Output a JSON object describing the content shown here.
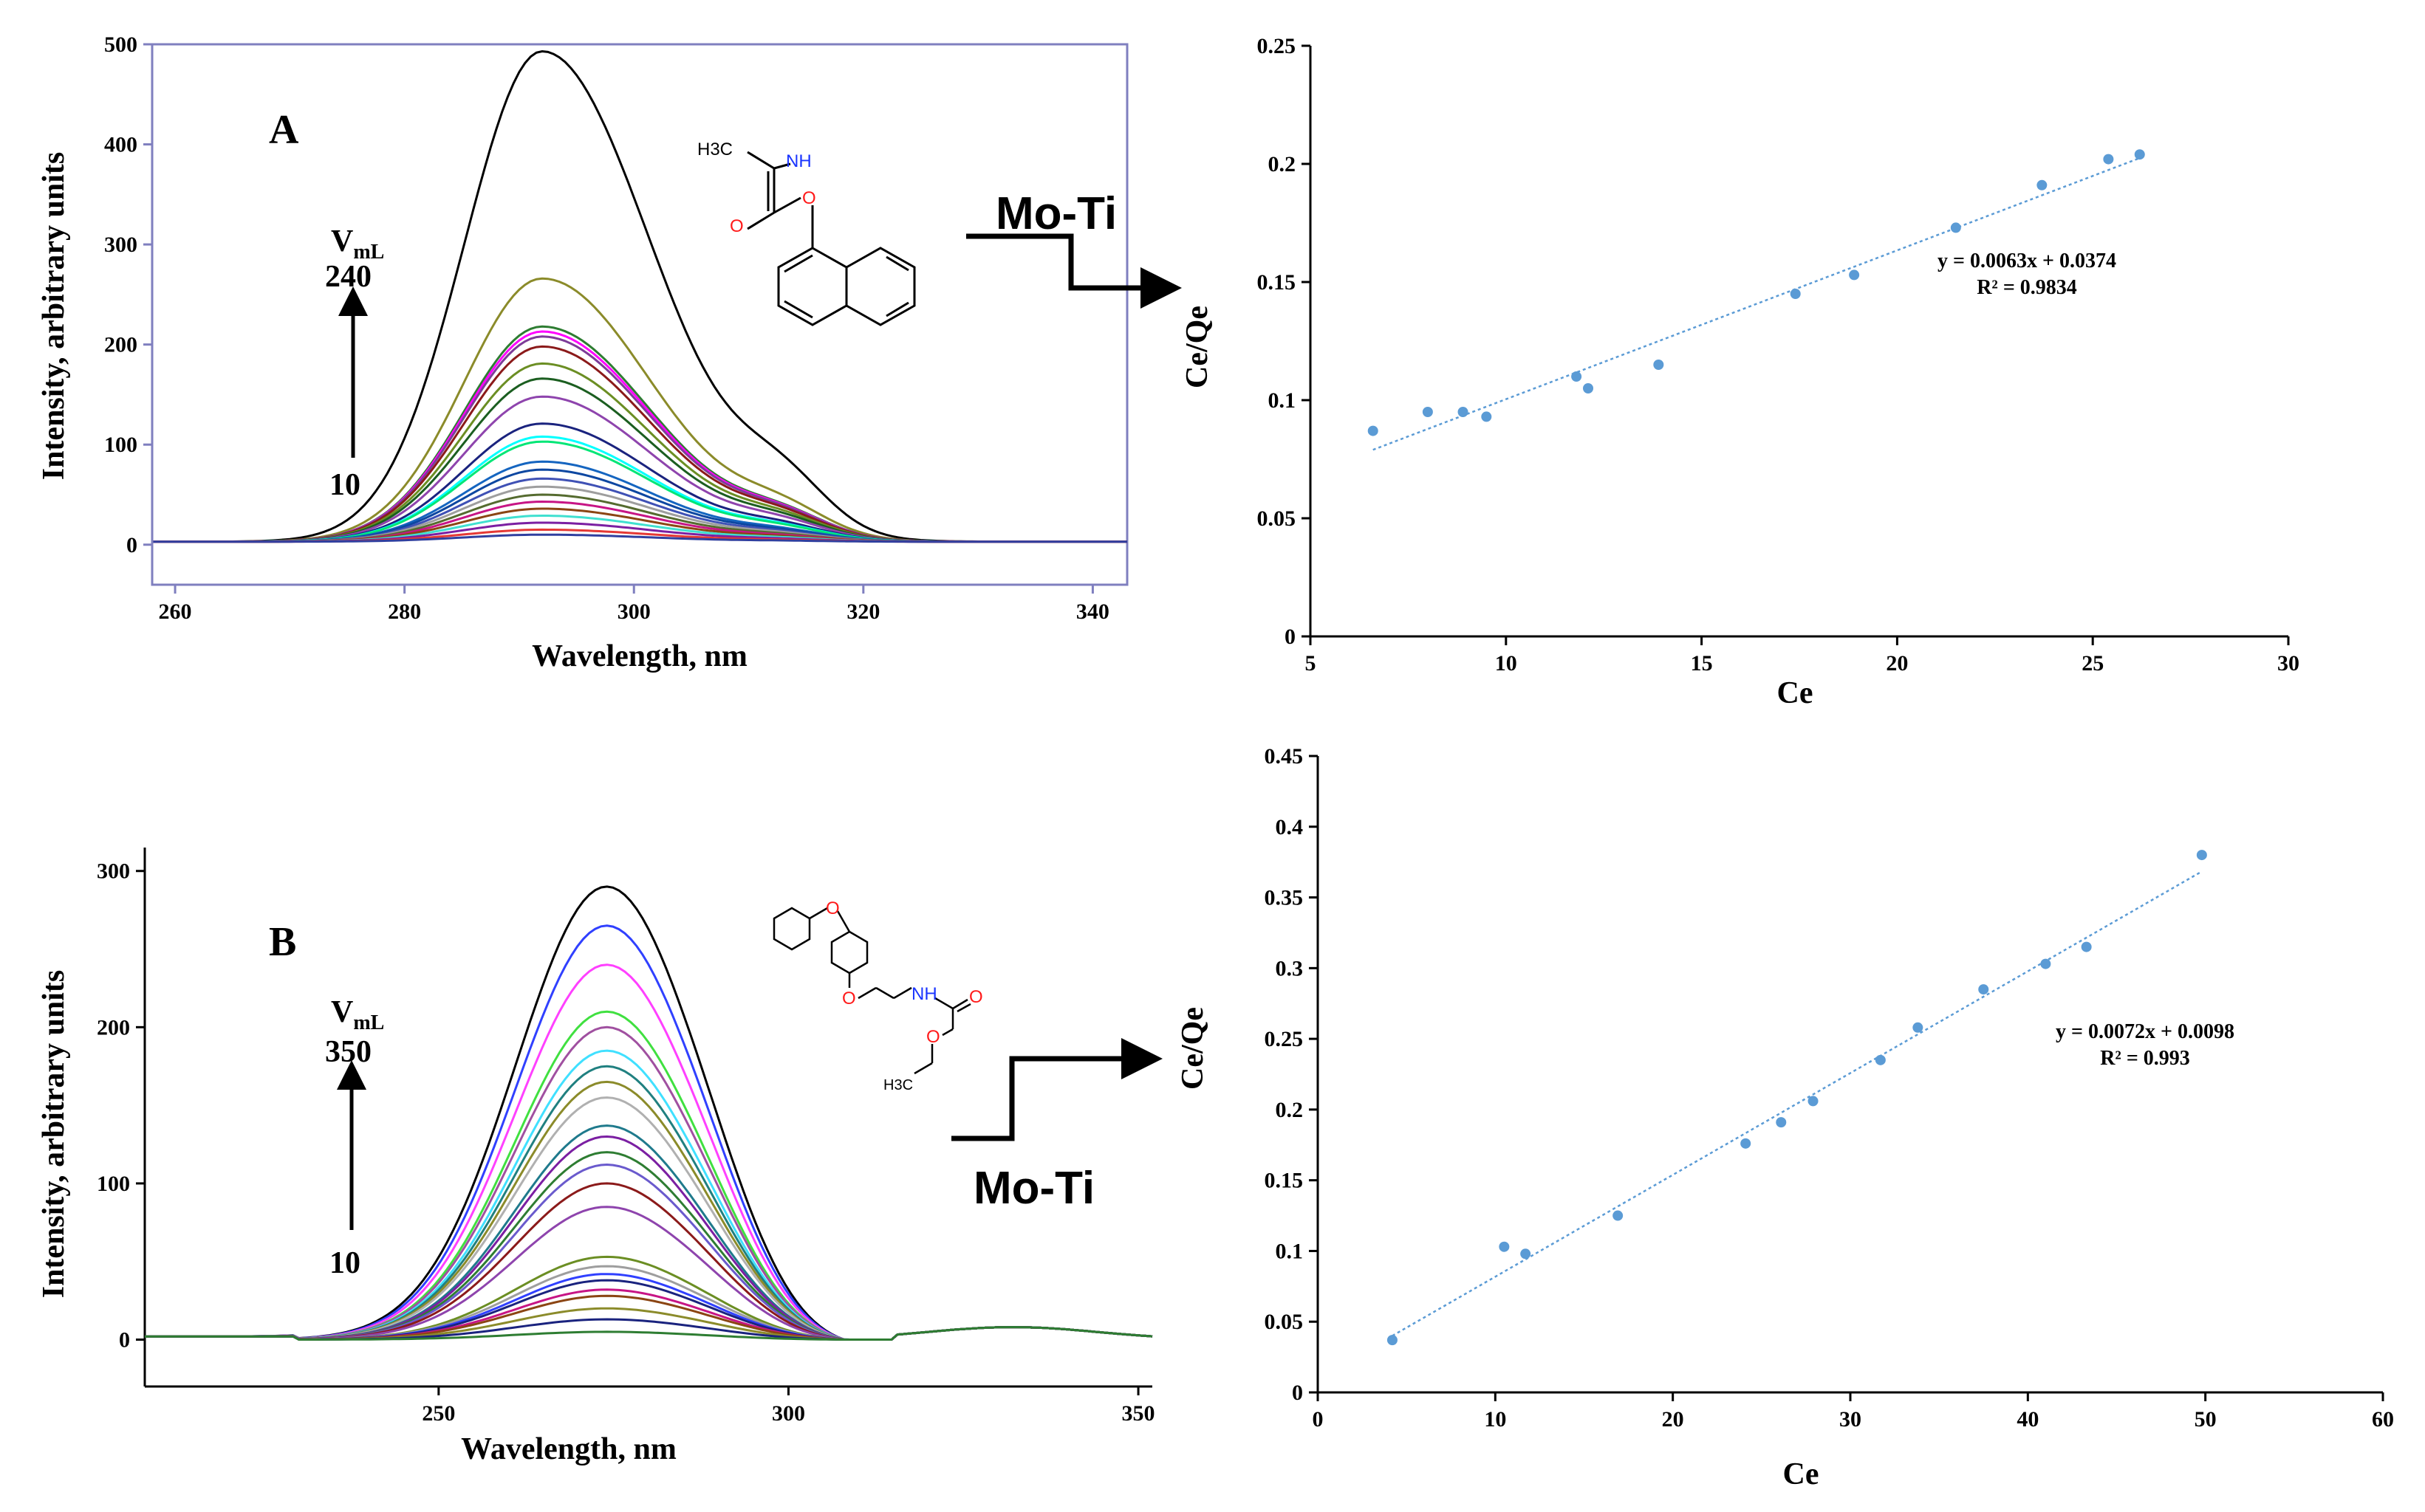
{
  "annotations": {
    "panel_a": "A",
    "panel_b": "B",
    "vml_a": "V",
    "vml_a_sub": "mL",
    "vml_a_top": "240",
    "vml_a_bottom": "10",
    "vml_b": "V",
    "vml_b_sub": "mL",
    "vml_b_top": "350",
    "vml_b_bottom": "10",
    "moti_a": "Mo-Ti",
    "moti_b": "Mo-Ti",
    "mol_a_nh": "NH",
    "mol_a_h3c": "H3C",
    "mol_a_o1": "O",
    "mol_a_o2": "O",
    "mol_b_o1": "O",
    "mol_b_o2": "O",
    "mol_b_nh": "NH",
    "mol_b_o3": "O",
    "mol_b_o4": "O",
    "mol_b_h3c": "H3C"
  },
  "chart_data": [
    {
      "type": "line",
      "id": "spectra_a",
      "title": "",
      "xlabel": "Wavelength, nm",
      "ylabel": "Intensity, arbitrary units",
      "xlim": [
        258,
        343
      ],
      "ylim": [
        -40,
        500
      ],
      "xticks": [
        260,
        280,
        300,
        320,
        340
      ],
      "yticks": [
        0,
        100,
        200,
        300,
        400,
        500
      ],
      "grid": false,
      "legend": "none",
      "peak_x": 292,
      "curves": [
        {
          "peak": 490,
          "color": "#000000"
        },
        {
          "peak": 263,
          "color": "#8b8b2a"
        },
        {
          "peak": 215,
          "color": "#2e7d32"
        },
        {
          "peak": 210,
          "color": "#ff00ff"
        },
        {
          "peak": 205,
          "color": "#7d3c98"
        },
        {
          "peak": 195,
          "color": "#8b1a1a"
        },
        {
          "peak": 178,
          "color": "#6b8e23"
        },
        {
          "peak": 163,
          "color": "#1b5e20"
        },
        {
          "peak": 145,
          "color": "#8e44ad"
        },
        {
          "peak": 118,
          "color": "#1a237e"
        },
        {
          "peak": 105,
          "color": "#00ffff"
        },
        {
          "peak": 100,
          "color": "#00e676"
        },
        {
          "peak": 80,
          "color": "#1565c0"
        },
        {
          "peak": 72,
          "color": "#0d47a1"
        },
        {
          "peak": 63,
          "color": "#3f51b5"
        },
        {
          "peak": 55,
          "color": "#9e9e9e"
        },
        {
          "peak": 47,
          "color": "#556b2f"
        },
        {
          "peak": 40,
          "color": "#c71585"
        },
        {
          "peak": 33,
          "color": "#8b4513"
        },
        {
          "peak": 26,
          "color": "#40e0d0"
        },
        {
          "peak": 19,
          "color": "#7b1fa2"
        },
        {
          "peak": 12,
          "color": "#e53935"
        },
        {
          "peak": 7,
          "color": "#303f9f"
        }
      ]
    },
    {
      "type": "scatter",
      "id": "isotherm_a",
      "title": "",
      "xlabel": "Ce",
      "ylabel": "Ce/Qe",
      "xlim": [
        5,
        30
      ],
      "ylim": [
        0,
        0.25
      ],
      "xticks": [
        5,
        10,
        15,
        20,
        25,
        30
      ],
      "yticks": [
        0,
        0.05,
        0.1,
        0.15,
        0.2,
        0.25
      ],
      "grid": false,
      "legend": "none",
      "color": "#5b9bd5",
      "x": [
        6.6,
        8.0,
        8.9,
        9.5,
        11.8,
        12.1,
        13.9,
        17.4,
        18.9,
        21.5,
        23.7,
        25.4,
        26.2
      ],
      "y": [
        0.087,
        0.095,
        0.095,
        0.093,
        0.11,
        0.105,
        0.115,
        0.145,
        0.153,
        0.173,
        0.191,
        0.202,
        0.204
      ],
      "trendline": {
        "slope": 0.0063,
        "intercept": 0.0374,
        "x_range": [
          6.6,
          26.2
        ]
      },
      "equation": "y = 0.0063x + 0.0374",
      "r2": "R² = 0.9834"
    },
    {
      "type": "line",
      "id": "spectra_b",
      "title": "",
      "xlabel": "Wavelength, nm",
      "ylabel": "Intensity, arbitrary units",
      "xlim": [
        208,
        352
      ],
      "ylim": [
        -30,
        315
      ],
      "xticks": [
        250,
        300,
        350
      ],
      "yticks": [
        0,
        100,
        200,
        300
      ],
      "grid": false,
      "legend": "none",
      "peak_x": 274,
      "curves": [
        {
          "peak": 290,
          "color": "#000000"
        },
        {
          "peak": 265,
          "color": "#3040ff"
        },
        {
          "peak": 240,
          "color": "#ff40ff"
        },
        {
          "peak": 210,
          "color": "#40e040"
        },
        {
          "peak": 200,
          "color": "#a050a0"
        },
        {
          "peak": 185,
          "color": "#40e0ff"
        },
        {
          "peak": 175,
          "color": "#208080"
        },
        {
          "peak": 165,
          "color": "#8b8b2a"
        },
        {
          "peak": 155,
          "color": "#b0b0b0"
        },
        {
          "peak": 137,
          "color": "#1f7a8c"
        },
        {
          "peak": 130,
          "color": "#7b1fa2"
        },
        {
          "peak": 120,
          "color": "#2e7d32"
        },
        {
          "peak": 112,
          "color": "#6a5acd"
        },
        {
          "peak": 100,
          "color": "#8b1a1a"
        },
        {
          "peak": 85,
          "color": "#8e44ad"
        },
        {
          "peak": 53,
          "color": "#6b8e23"
        },
        {
          "peak": 47,
          "color": "#9e9e9e"
        },
        {
          "peak": 42,
          "color": "#3040ff"
        },
        {
          "peak": 38,
          "color": "#1a237e"
        },
        {
          "peak": 32,
          "color": "#c71585"
        },
        {
          "peak": 28,
          "color": "#8b4513"
        },
        {
          "peak": 20,
          "color": "#8b8b2a"
        },
        {
          "peak": 13,
          "color": "#1a237e"
        },
        {
          "peak": 5,
          "color": "#2e7d32"
        }
      ]
    },
    {
      "type": "scatter",
      "id": "isotherm_b",
      "title": "",
      "xlabel": "Ce",
      "ylabel": "Ce/Qe",
      "xlim": [
        0,
        60
      ],
      "ylim": [
        0,
        0.45
      ],
      "xticks": [
        0,
        10,
        20,
        30,
        40,
        50,
        60
      ],
      "yticks": [
        0,
        0.05,
        0.1,
        0.15,
        0.2,
        0.25,
        0.3,
        0.35,
        0.4,
        0.45
      ],
      "grid": false,
      "legend": "none",
      "color": "#5b9bd5",
      "x": [
        4.2,
        10.5,
        11.7,
        16.9,
        24.1,
        26.1,
        27.9,
        31.7,
        33.8,
        37.5,
        41.0,
        43.3,
        49.8
      ],
      "y": [
        0.037,
        0.103,
        0.098,
        0.125,
        0.176,
        0.191,
        0.206,
        0.235,
        0.258,
        0.285,
        0.303,
        0.315,
        0.38
      ],
      "trendline": {
        "slope": 0.0072,
        "intercept": 0.0098,
        "x_range": [
          4.2,
          49.8
        ]
      },
      "equation": "y = 0.0072x + 0.0098",
      "r2": "R² = 0.993"
    }
  ]
}
